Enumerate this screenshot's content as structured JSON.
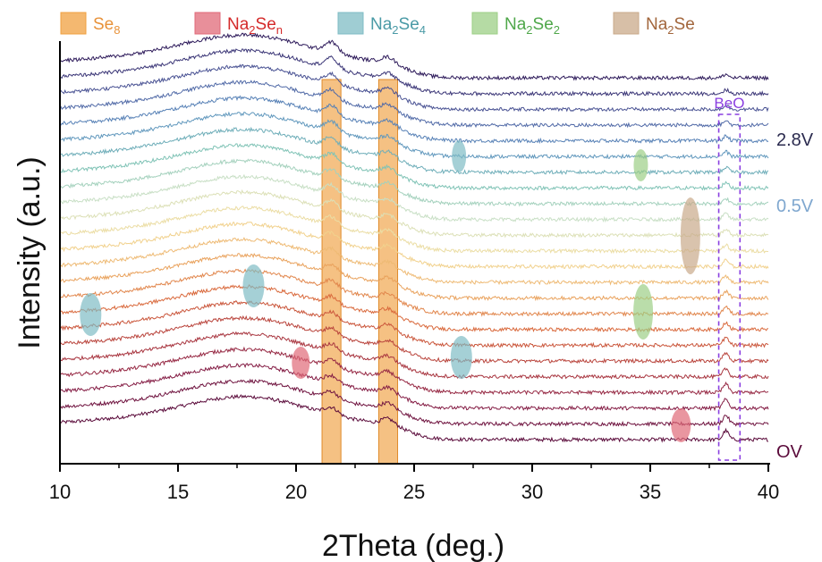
{
  "chart_data": {
    "type": "line",
    "xlabel": "2Theta (deg.)",
    "ylabel": "Intensity (a.u.)",
    "xlim": [
      10,
      40
    ],
    "x_ticks": [
      "10",
      "15",
      "20",
      "25",
      "30",
      "35",
      "40"
    ],
    "y_ticks_labeled": false,
    "stacked_scan_count": 24,
    "gradient_colors": [
      "#5a0a3a",
      "#8a1f45",
      "#b33d3d",
      "#d8663a",
      "#eba860",
      "#f3dc9a",
      "#cfe2c6",
      "#7cc2b5",
      "#5b8fbf",
      "#4d5a9c",
      "#2d1a5a"
    ],
    "voltage_labels": [
      {
        "text": "2.8V",
        "color": "#2b2b4f"
      },
      {
        "text": "0.5V",
        "color": "#7fa7cf"
      },
      {
        "text": "OV",
        "color": "#5a0a3a"
      }
    ],
    "reference_phases": [
      {
        "name_main": "Se",
        "name_sub": "8",
        "name_tail": "",
        "color": "#f0a040",
        "text_color": "#e8923a"
      },
      {
        "name_main": "Na",
        "name_sub": "2",
        "name_tail": "Se",
        "name_sub2": "n",
        "color": "#e06a78",
        "text_color": "#d42a2a"
      },
      {
        "name_main": "Na",
        "name_sub": "2",
        "name_tail": "Se",
        "name_sub2": "4",
        "color": "#7fbcc4",
        "text_color": "#4a9aa6"
      },
      {
        "name_main": "Na",
        "name_sub": "2",
        "name_tail": "Se",
        "name_sub2": "2",
        "color": "#9ccf86",
        "text_color": "#4fa74a"
      },
      {
        "name_main": "Na",
        "name_sub": "2",
        "name_tail": "Se",
        "name_sub2": "",
        "color": "#c9a98a",
        "text_color": "#a2663c"
      }
    ],
    "se8_bands": [
      [
        21.1,
        21.9
      ],
      [
        23.5,
        24.3
      ]
    ],
    "beo_box": {
      "label": "BeO",
      "x_range": [
        37.9,
        38.8
      ],
      "color": "#8a3fe0"
    },
    "markers": [
      {
        "phase": "Na2Se4",
        "x": 11.3
      },
      {
        "phase": "Na2Se4",
        "x": 18.2
      },
      {
        "phase": "Na2Sen",
        "x": 20.2
      },
      {
        "phase": "Na2Se4",
        "x": 27.0
      },
      {
        "phase": "Na2Se4",
        "x": 26.9
      },
      {
        "phase": "Na2Se2",
        "x": 34.7
      },
      {
        "phase": "Na2Se2",
        "x": 34.6
      },
      {
        "phase": "Na2Se",
        "x": 36.7
      },
      {
        "phase": "Na2Sen",
        "x": 36.3
      }
    ]
  }
}
